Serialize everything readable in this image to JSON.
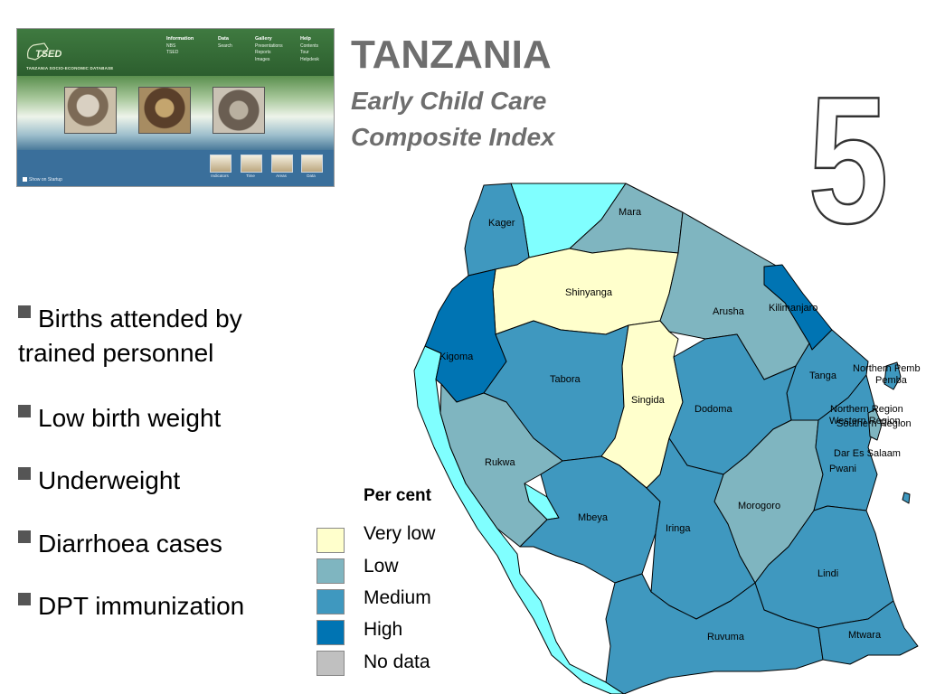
{
  "thumbnail": {
    "logo": "TSED",
    "subtitle": "TANZANIA SOCIO-ECONOMIC DATABASE",
    "menu": [
      {
        "heading": "Information",
        "items": [
          "NBS",
          "TSED"
        ]
      },
      {
        "heading": "Data",
        "items": [
          "Search"
        ]
      },
      {
        "heading": "Gallery",
        "items": [
          "Presentations",
          "Reports",
          "Images"
        ]
      },
      {
        "heading": "Help",
        "items": [
          "Contents",
          "Tour",
          "Helpdesk"
        ]
      }
    ],
    "tools": [
      "Indicators",
      "Time",
      "Areas",
      "Data"
    ],
    "startup": "Show on Startup"
  },
  "title": "TANZANIA",
  "subtitle_line1": "Early Child Care",
  "subtitle_line2": "Composite Index",
  "big_number": "5",
  "bullets": [
    {
      "line1": "Births attended by",
      "line2": "trained personnel"
    },
    {
      "line1": "Low birth weight"
    },
    {
      "line1": "Underweight"
    },
    {
      "line1": "Diarrhoea cases"
    },
    {
      "line1": "DPT immunization"
    }
  ],
  "legend": {
    "title": "Per cent",
    "items": [
      {
        "label": "Very low",
        "color": "#ffffcc"
      },
      {
        "label": "Low",
        "color": "#7fb5c0"
      },
      {
        "label": "Medium",
        "color": "#3f98bf"
      },
      {
        "label": "High",
        "color": "#0074b3"
      },
      {
        "label": "No data",
        "color": "#c0c0c0"
      }
    ]
  },
  "colors": {
    "lake": "#80ffff",
    "very_low": "#ffffcc",
    "low": "#7fb5c0",
    "medium": "#3f98bf",
    "high": "#0074b3"
  },
  "regions": [
    {
      "name": "Kagera",
      "text": "Kager",
      "level": "medium"
    },
    {
      "name": "Mara",
      "text": "Mara",
      "level": "low"
    },
    {
      "name": "Shinyanga",
      "text": "Shinyanga",
      "level": "very low"
    },
    {
      "name": "Arusha",
      "text": "Arusha",
      "level": "low"
    },
    {
      "name": "Kilimanjaro",
      "text": "Kilimanjaro",
      "level": "high"
    },
    {
      "name": "Kigoma",
      "text": "Kigoma",
      "level": "high"
    },
    {
      "name": "Tabora",
      "text": "Tabora",
      "level": "medium"
    },
    {
      "name": "Singida",
      "text": "Singida",
      "level": "very low"
    },
    {
      "name": "Tanga",
      "text": "Tanga",
      "level": "medium"
    },
    {
      "name": "Northern Pemba",
      "text": "Northern Pemb",
      "level": "medium"
    },
    {
      "name": "Pemba",
      "text": "Pemba",
      "level": "medium"
    },
    {
      "name": "Dodoma",
      "text": "Dodoma",
      "level": "medium"
    },
    {
      "name": "Northern Region",
      "text": "Northern Region",
      "level": "medium"
    },
    {
      "name": "Western Region",
      "text": "Western Region",
      "level": "low"
    },
    {
      "name": "Southern Region",
      "text": "Southern Region",
      "level": "low"
    },
    {
      "name": "Dar Es Salaam",
      "text": "Dar Es Salaam",
      "level": "medium"
    },
    {
      "name": "Pwani",
      "text": "Pwani",
      "level": "medium"
    },
    {
      "name": "Rukwa",
      "text": "Rukwa",
      "level": "low"
    },
    {
      "name": "Morogoro",
      "text": "Morogoro",
      "level": "low"
    },
    {
      "name": "Mbeya",
      "text": "Mbeya",
      "level": "medium"
    },
    {
      "name": "Iringa",
      "text": "Iringa",
      "level": "medium"
    },
    {
      "name": "Lindi",
      "text": "Lindi",
      "level": "medium"
    },
    {
      "name": "Ruvuma",
      "text": "Ruvuma",
      "level": "medium"
    },
    {
      "name": "Mtwara",
      "text": "Mtwara",
      "level": "medium"
    }
  ]
}
